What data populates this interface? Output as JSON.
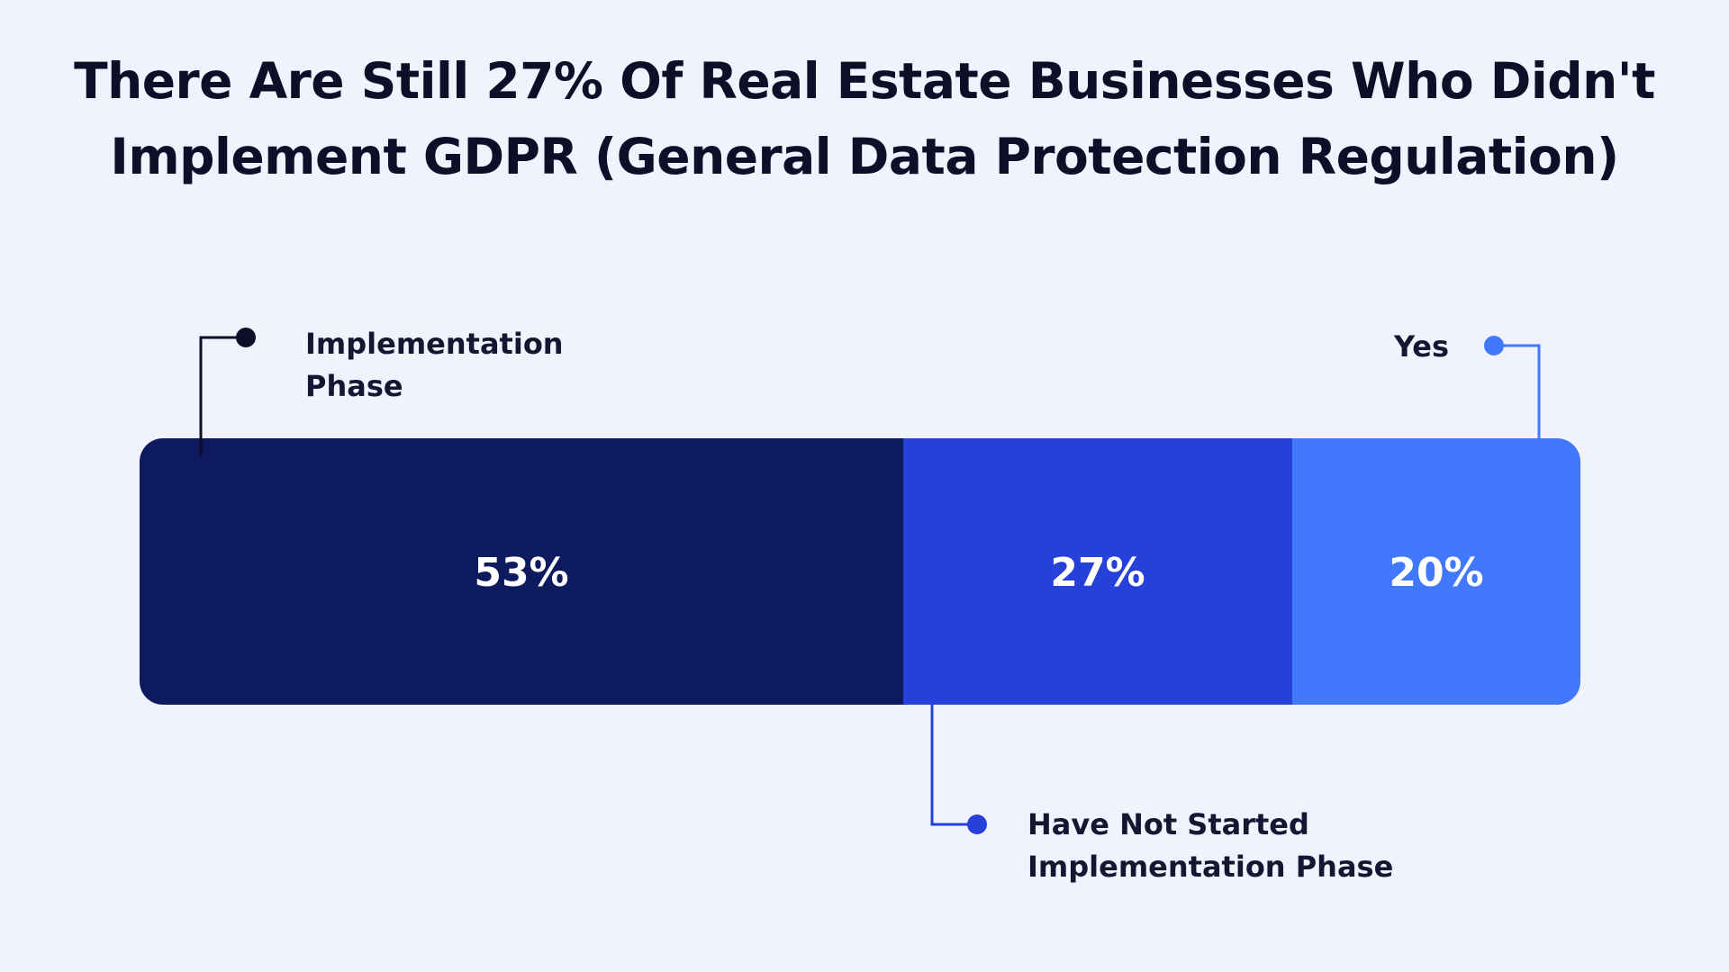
{
  "title": {
    "line1": "There Are Still 27% Of Real Estate Businesses Who Didn't",
    "line2": "Implement GDPR (General Data Protection Regulation)"
  },
  "chart_data": {
    "type": "bar",
    "stacked": true,
    "orientation": "horizontal",
    "unit": "%",
    "title": "There Are Still 27% Of Real Estate Businesses Who Didn't Implement GDPR (General Data Protection Regulation)",
    "series": [
      {
        "name": "Implementation Phase",
        "value": 53,
        "label": "53%",
        "color": "#0e1a5e",
        "callout_lines": [
          "Implementation",
          "Phase"
        ],
        "callout_side": "top",
        "callout_color": "#0d0f28"
      },
      {
        "name": "Have Not Started Implementation Phase",
        "value": 27,
        "label": "27%",
        "color": "#2541d9",
        "callout_lines": [
          "Have Not Started",
          "Implementation Phase"
        ],
        "callout_side": "bottom",
        "callout_color": "#2541d9"
      },
      {
        "name": "Yes",
        "value": 20,
        "label": "20%",
        "color": "#4278fb",
        "callout_lines": [
          "Yes"
        ],
        "callout_side": "top",
        "callout_color": "#4278fb"
      }
    ],
    "legend": "callouts"
  }
}
